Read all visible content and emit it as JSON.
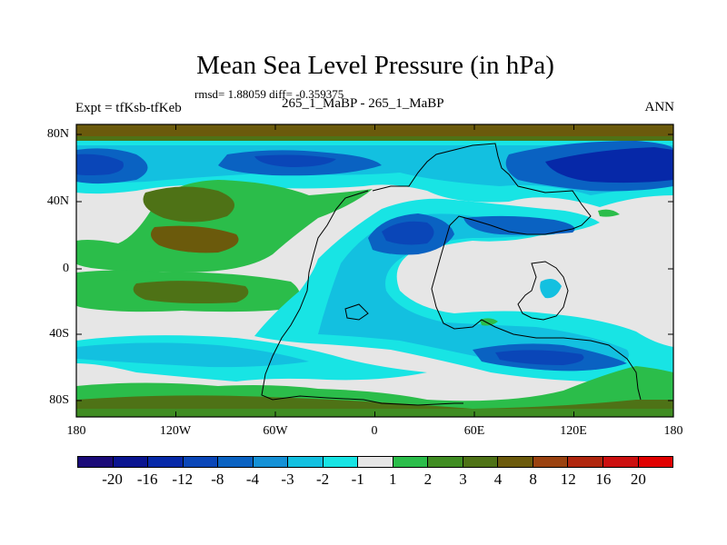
{
  "title": "Mean Sea Level Pressure (in hPa)",
  "stats": "rmsd= 1.88059 diff= -0.359375",
  "expt": "Expt = tfKsb-tfKeb",
  "subtitle": "265_1_MaBP - 265_1_MaBP",
  "season": "ANN",
  "axes": {
    "lat_ticks": [
      "80N",
      "40N",
      "0",
      "40S",
      "80S"
    ],
    "lon_ticks": [
      "180",
      "120W",
      "60W",
      "0",
      "60E",
      "120E",
      "180"
    ]
  },
  "colorbar": {
    "labels": [
      "-20",
      "-16",
      "-12",
      "-8",
      "-4",
      "-3",
      "-2",
      "-1",
      "1",
      "2",
      "3",
      "4",
      "8",
      "12",
      "16",
      "20"
    ],
    "colors": [
      "#1a0a78",
      "#0a1490",
      "#0628a8",
      "#0a46b8",
      "#0a62c2",
      "#1591d6",
      "#13c0e0",
      "#18e4e4",
      "#e6e6e6",
      "#2bbd4a",
      "#3f8c22",
      "#4e7216",
      "#6b5a0c",
      "#9a4210",
      "#b0260e",
      "#cc1010",
      "#e00000"
    ]
  }
}
